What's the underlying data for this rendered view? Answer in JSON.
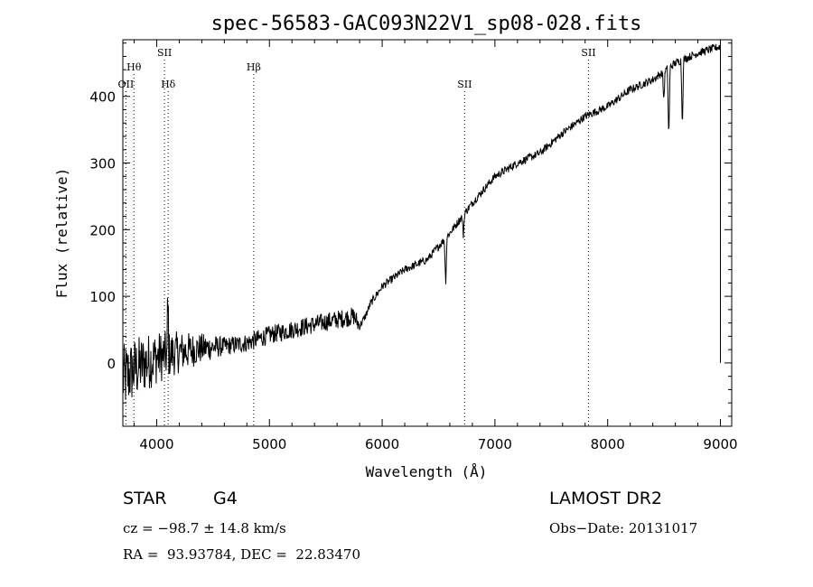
{
  "chart_data": {
    "type": "line",
    "title": "spec-56583-GAC093N22V1_sp08-028.fits",
    "xlabel": "Wavelength (Å)",
    "ylabel": "Flux (relative)",
    "xlim": [
      3700,
      9100
    ],
    "ylim": [
      -95,
      485
    ],
    "xticks": [
      4000,
      5000,
      6000,
      7000,
      8000,
      9000
    ],
    "yticks": [
      0,
      100,
      200,
      300,
      400
    ],
    "spectral_lines": [
      {
        "label": "OII",
        "wavelength": 3727,
        "row": 3
      },
      {
        "label": "Hθ",
        "wavelength": 3798,
        "row": 2
      },
      {
        "label": "SII",
        "wavelength": 4069,
        "row": 1
      },
      {
        "label": "Hδ",
        "wavelength": 4102,
        "row": 3
      },
      {
        "label": "Hβ",
        "wavelength": 4861,
        "row": 2
      },
      {
        "label": "SII",
        "wavelength": 6731,
        "row": 3
      },
      {
        "label": "SII",
        "wavelength": 7830,
        "row": 1
      }
    ],
    "continuum": [
      [
        3700,
        -25
      ],
      [
        3800,
        -10
      ],
      [
        3900,
        0
      ],
      [
        4000,
        8
      ],
      [
        4100,
        12
      ],
      [
        4200,
        16
      ],
      [
        4400,
        22
      ],
      [
        4600,
        25
      ],
      [
        4800,
        30
      ],
      [
        5000,
        42
      ],
      [
        5200,
        50
      ],
      [
        5400,
        58
      ],
      [
        5600,
        65
      ],
      [
        5750,
        70
      ],
      [
        5800,
        55
      ],
      [
        5850,
        70
      ],
      [
        5900,
        90
      ],
      [
        6000,
        115
      ],
      [
        6200,
        140
      ],
      [
        6400,
        155
      ],
      [
        6600,
        195
      ],
      [
        6800,
        240
      ],
      [
        7000,
        280
      ],
      [
        7200,
        300
      ],
      [
        7400,
        315
      ],
      [
        7600,
        345
      ],
      [
        7800,
        370
      ],
      [
        8000,
        385
      ],
      [
        8200,
        410
      ],
      [
        8400,
        425
      ],
      [
        8600,
        450
      ],
      [
        8800,
        465
      ],
      [
        9000,
        475
      ]
    ],
    "absorption_features": [
      {
        "wavelength": 6563,
        "depth": 70
      },
      {
        "wavelength": 6720,
        "depth": 30
      },
      {
        "wavelength": 8498,
        "depth": 45
      },
      {
        "wavelength": 8542,
        "depth": 110
      },
      {
        "wavelength": 8662,
        "depth": 100
      }
    ],
    "noise_amplitude_blue": 45,
    "noise_amplitude_red": 6
  },
  "info": {
    "class": "STAR",
    "subclass": "G4",
    "survey": "LAMOST DR2",
    "cz": "cz = −98.7 ± 14.8 km/s",
    "obsdate": "Obs−Date: 20131017",
    "radec": "RA =  93.93784, DEC =  22.83470"
  }
}
